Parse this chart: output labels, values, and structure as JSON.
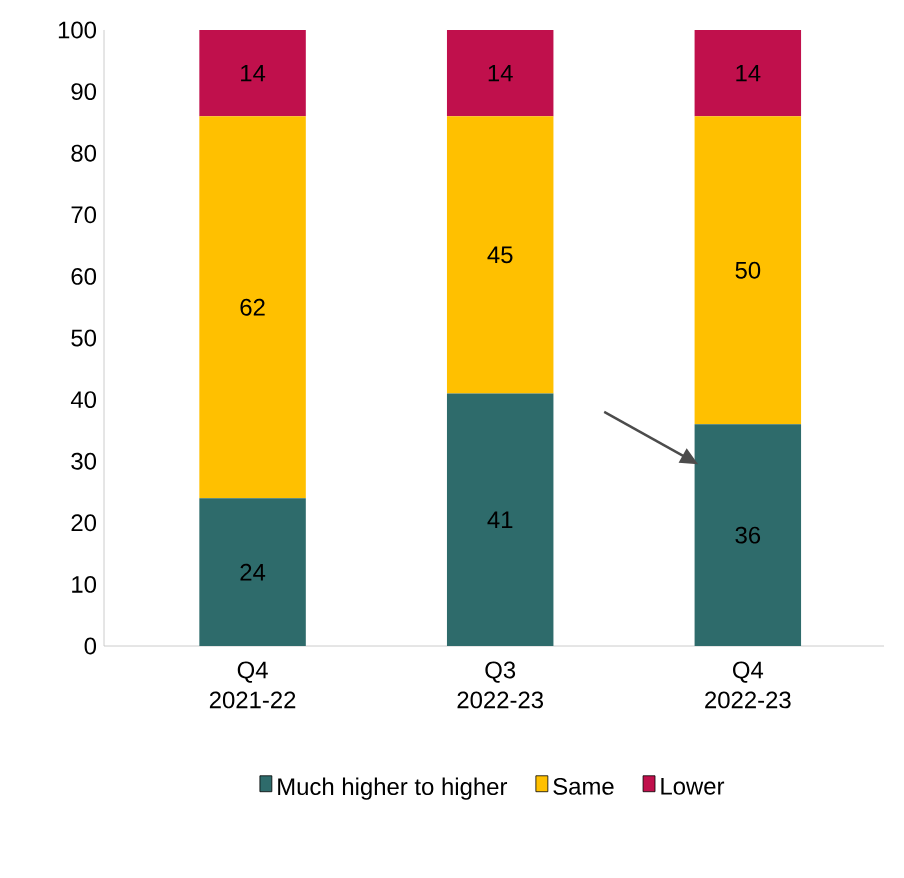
{
  "chart_data": {
    "type": "bar",
    "stacked": true,
    "categories": [
      "Q4 2021-22",
      "Q3 2022-23",
      "Q4 2022-23"
    ],
    "series": [
      {
        "name": "Much higher to higher",
        "color": "#2e6b6b",
        "values": [
          24,
          41,
          36
        ]
      },
      {
        "name": "Same",
        "color": "#ffc000",
        "values": [
          62,
          45,
          50
        ]
      },
      {
        "name": "Lower",
        "color": "#c0104c",
        "values": [
          14,
          14,
          14
        ]
      }
    ],
    "ylim": [
      0,
      100
    ],
    "yticks": [
      0,
      10,
      20,
      30,
      40,
      50,
      60,
      70,
      80,
      90,
      100
    ],
    "data_labels": true,
    "legend": "bottom"
  }
}
